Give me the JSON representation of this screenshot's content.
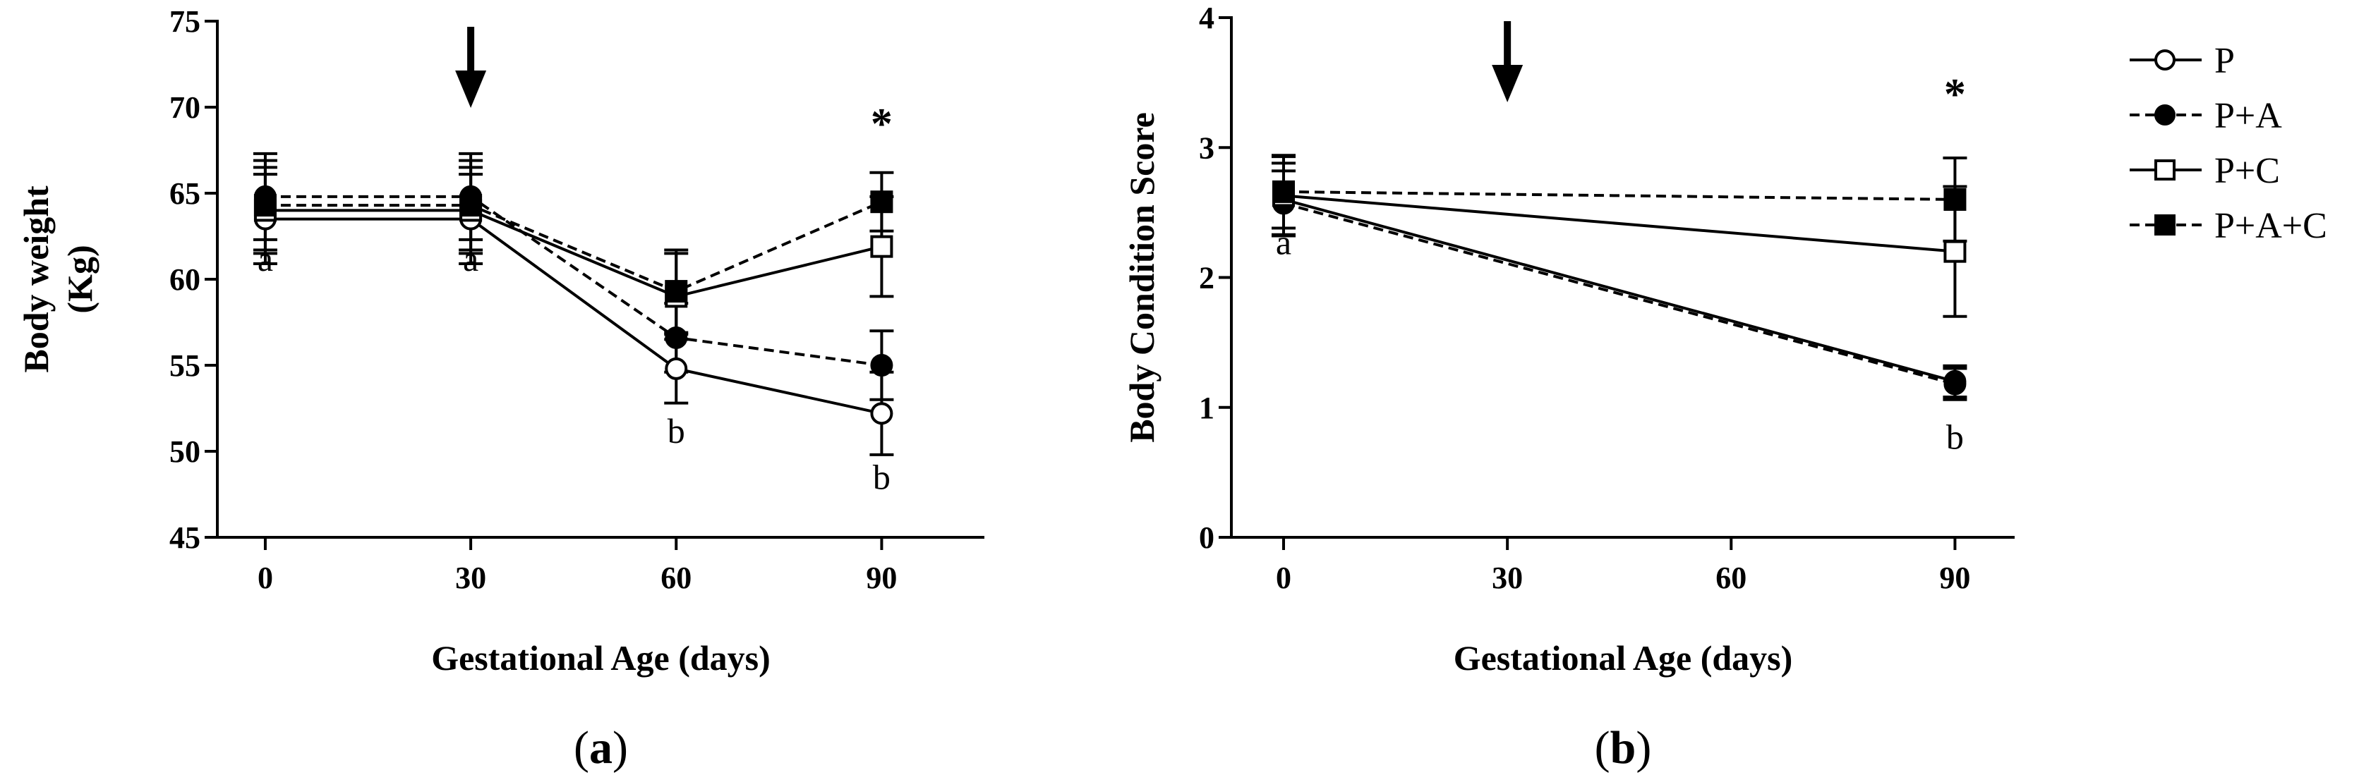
{
  "chart_data": [
    {
      "panel": "a",
      "panel_label": "a",
      "type": "line",
      "xlabel": "Gestational Age (days)",
      "ylabel_line1": "Body weight",
      "ylabel_line2": "(Kg)",
      "xlim": [
        -7,
        105
      ],
      "ylim": [
        45,
        75
      ],
      "xticks": [
        0,
        30,
        60,
        90
      ],
      "yticks": [
        45,
        50,
        55,
        60,
        65,
        70,
        75
      ],
      "arrow_x": 30,
      "series": [
        {
          "name": "P",
          "marker": "circle-open",
          "dashed": false,
          "x": [
            0,
            30,
            60,
            90
          ],
          "y": [
            63.5,
            63.5,
            54.8,
            52.2
          ],
          "err": [
            2.6,
            2.6,
            2.0,
            2.4
          ]
        },
        {
          "name": "P+A",
          "marker": "circle-filled",
          "dashed": true,
          "x": [
            0,
            30,
            60,
            90
          ],
          "y": [
            64.8,
            64.8,
            56.6,
            55.0
          ],
          "err": [
            2.5,
            2.5,
            2.0,
            2.0
          ]
        },
        {
          "name": "P+C",
          "marker": "square-open",
          "dashed": false,
          "x": [
            0,
            30,
            60,
            90
          ],
          "y": [
            64.0,
            64.0,
            59.0,
            61.9
          ],
          "err": [
            2.5,
            2.5,
            2.5,
            2.9
          ]
        },
        {
          "name": "P+A+C",
          "marker": "square-filled",
          "dashed": true,
          "x": [
            0,
            30,
            60,
            90
          ],
          "y": [
            64.3,
            64.3,
            59.3,
            64.5
          ],
          "err": [
            2.6,
            2.6,
            2.4,
            1.7
          ]
        }
      ],
      "annotations": [
        {
          "text": "a",
          "x": 0,
          "y": 60.5
        },
        {
          "text": "a",
          "x": 30,
          "y": 60.5
        },
        {
          "text": "b",
          "x": 60,
          "y": 50.5
        },
        {
          "text": "b",
          "x": 90,
          "y": 47.8
        },
        {
          "text": "*",
          "x": 90,
          "y": 68.2
        }
      ]
    },
    {
      "panel": "b",
      "panel_label": "b",
      "type": "line",
      "xlabel": "Gestational Age (days)",
      "ylabel": "Body Condition Score",
      "xlim": [
        -7,
        98
      ],
      "ylim": [
        0,
        4
      ],
      "xticks": [
        0,
        30,
        60,
        90
      ],
      "yticks": [
        0,
        1,
        2,
        3,
        4
      ],
      "arrow_x": 30,
      "series": [
        {
          "name": "P",
          "marker": "circle-open",
          "dashed": false,
          "x": [
            0,
            90
          ],
          "y": [
            2.6,
            1.2
          ],
          "err": [
            0.28,
            0.12
          ]
        },
        {
          "name": "P+A",
          "marker": "circle-filled",
          "dashed": true,
          "x": [
            0,
            90
          ],
          "y": [
            2.57,
            1.18
          ],
          "err": [
            0.25,
            0.12
          ]
        },
        {
          "name": "P+C",
          "marker": "square-open",
          "dashed": false,
          "x": [
            0,
            90
          ],
          "y": [
            2.63,
            2.2
          ],
          "err": [
            0.3,
            0.5
          ]
        },
        {
          "name": "P+A+C",
          "marker": "square-filled",
          "dashed": true,
          "x": [
            0,
            90
          ],
          "y": [
            2.66,
            2.6
          ],
          "err": [
            0.28,
            0.32
          ]
        }
      ],
      "annotations": [
        {
          "text": "a",
          "x": 0,
          "y": 2.18
        },
        {
          "text": "b",
          "x": 90,
          "y": 0.68
        },
        {
          "text": "*",
          "x": 90,
          "y": 3.3
        }
      ]
    }
  ],
  "legend": [
    {
      "label": "P",
      "marker": "circle-open",
      "dashed": false
    },
    {
      "label": "P+A",
      "marker": "circle-filled",
      "dashed": true
    },
    {
      "label": "P+C",
      "marker": "square-open",
      "dashed": false
    },
    {
      "label": "P+A+C",
      "marker": "square-filled",
      "dashed": true
    }
  ]
}
